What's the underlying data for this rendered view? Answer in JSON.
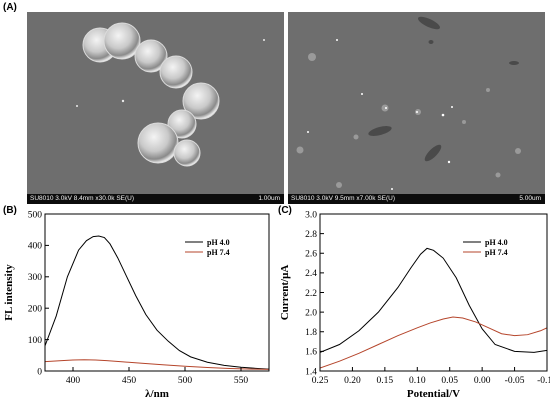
{
  "panels": {
    "a_label": "(A)",
    "b_label": "(B)",
    "c_label": "(C)"
  },
  "sem_images": [
    {
      "info": "SU8010 3.0kV 8.4mm x30.0k SE(U)",
      "scale": "1.00um"
    },
    {
      "info": "SU8010 3.0kV 9.5mm x7.00k SE(U)",
      "scale": "5.00um"
    }
  ],
  "colors": {
    "ph40": "#000000",
    "ph74": "#b5452b",
    "sem_bg": "#6e6e6e"
  },
  "chart_data": [
    {
      "type": "line",
      "title": "",
      "xlabel": "λ/nm",
      "ylabel": "FL intensity",
      "xlim": [
        375,
        575
      ],
      "ylim": [
        0,
        500
      ],
      "xticks": [
        400,
        450,
        500,
        550
      ],
      "yticks": [
        0,
        100,
        200,
        300,
        400,
        500
      ],
      "legend_position": "top-right",
      "series": [
        {
          "name": "pH 4.0",
          "x": [
            375,
            385,
            395,
            405,
            412,
            418,
            423,
            428,
            433,
            440,
            448,
            456,
            465,
            475,
            485,
            495,
            505,
            520,
            535,
            550,
            565,
            575
          ],
          "y": [
            80,
            175,
            300,
            385,
            415,
            428,
            430,
            425,
            405,
            360,
            300,
            240,
            180,
            130,
            95,
            65,
            45,
            28,
            18,
            12,
            8,
            6
          ]
        },
        {
          "name": "pH 7.4",
          "x": [
            375,
            390,
            400,
            410,
            420,
            430,
            445,
            460,
            480,
            500,
            520,
            540,
            560,
            575
          ],
          "y": [
            30,
            33,
            35,
            36,
            35,
            33,
            29,
            25,
            20,
            15,
            11,
            8,
            6,
            5
          ]
        }
      ]
    },
    {
      "type": "line",
      "title": "",
      "xlabel": "Potential/V",
      "ylabel": "Current/μA",
      "xlim": [
        0.25,
        -0.1
      ],
      "ylim": [
        1.4,
        3.0
      ],
      "xticks": [
        0.25,
        0.2,
        0.15,
        0.1,
        0.05,
        0.0,
        -0.05,
        -0.1
      ],
      "yticks": [
        1.4,
        1.6,
        1.8,
        2.0,
        2.2,
        2.4,
        2.6,
        2.8,
        3.0
      ],
      "legend_position": "top-right",
      "series": [
        {
          "name": "pH 4.0",
          "x": [
            0.25,
            0.22,
            0.19,
            0.16,
            0.13,
            0.11,
            0.095,
            0.085,
            0.075,
            0.06,
            0.04,
            0.02,
            0.0,
            -0.02,
            -0.05,
            -0.08,
            -0.1
          ],
          "y": [
            1.59,
            1.67,
            1.81,
            2.0,
            2.25,
            2.45,
            2.59,
            2.65,
            2.63,
            2.55,
            2.35,
            2.07,
            1.83,
            1.67,
            1.6,
            1.59,
            1.61
          ]
        },
        {
          "name": "pH 7.4",
          "x": [
            0.25,
            0.22,
            0.19,
            0.16,
            0.13,
            0.1,
            0.08,
            0.06,
            0.045,
            0.03,
            0.01,
            -0.01,
            -0.03,
            -0.05,
            -0.07,
            -0.09,
            -0.1
          ],
          "y": [
            1.43,
            1.5,
            1.58,
            1.67,
            1.76,
            1.84,
            1.89,
            1.93,
            1.95,
            1.94,
            1.9,
            1.84,
            1.78,
            1.76,
            1.77,
            1.81,
            1.84
          ]
        }
      ]
    }
  ]
}
